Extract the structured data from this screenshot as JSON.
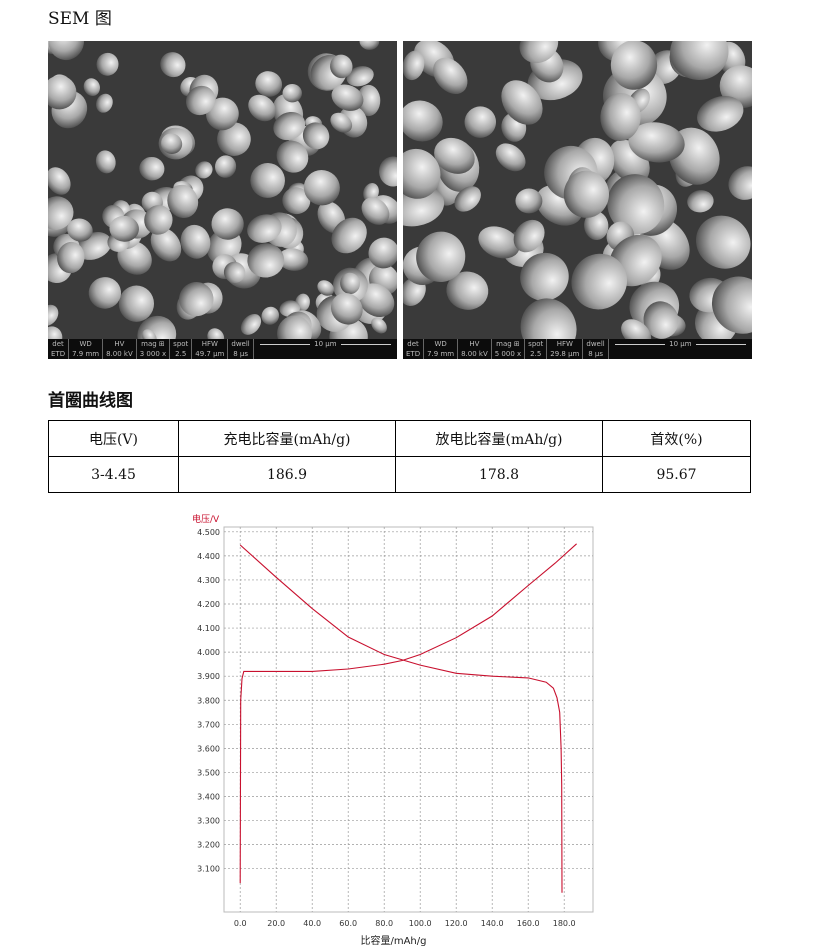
{
  "sem": {
    "title": "SEM 图",
    "images": [
      {
        "headers": [
          "det",
          "WD",
          "HV",
          "mag ⊞",
          "spot",
          "HFW",
          "dwell"
        ],
        "values": [
          "ETD",
          "7.9 mm",
          "8.00 kV",
          "3 000 x",
          "2.5",
          "49.7 μm",
          "8 μs"
        ],
        "scale": "10 μm"
      },
      {
        "headers": [
          "det",
          "WD",
          "HV",
          "mag ⊞",
          "spot",
          "HFW",
          "dwell"
        ],
        "values": [
          "ETD",
          "7.9 mm",
          "8.00 kV",
          "5 000 x",
          "2.5",
          "29.8 μm",
          "8 μs"
        ],
        "scale": "10 μm"
      }
    ]
  },
  "curve": {
    "title": "首圈曲线图"
  },
  "table": {
    "headers": [
      "电压(V)",
      "充电比容量(mAh/g)",
      "放电比容量(mAh/g)",
      "首效(%)"
    ],
    "rows": [
      [
        "3-4.45",
        "186.9",
        "178.8",
        "95.67"
      ]
    ]
  },
  "chart_data": {
    "type": "line",
    "ylabel": "电压/V",
    "xlabel": "比容量/mAh/g",
    "xlim": [
      -9,
      196
    ],
    "ylim": [
      2.92,
      4.52
    ],
    "xticks": [
      "0.0",
      "20.0",
      "40.0",
      "60.0",
      "80.0",
      "100.0",
      "120.0",
      "140.0",
      "160.0",
      "180.0"
    ],
    "yticks": [
      "4.500",
      "4.400",
      "4.300",
      "4.200",
      "4.100",
      "4.000",
      "3.900",
      "3.800",
      "3.700",
      "3.600",
      "3.500",
      "3.400",
      "3.300",
      "3.200",
      "3.100"
    ],
    "grid": true,
    "line_color": "#c8102e",
    "series": [
      {
        "x": [
          0,
          0.3,
          1,
          2,
          5,
          20,
          40,
          60,
          80,
          90,
          100,
          120,
          140,
          160,
          175,
          186.9
        ],
        "y": [
          3.04,
          3.8,
          3.89,
          3.92,
          3.92,
          3.92,
          3.92,
          3.93,
          3.95,
          3.965,
          3.99,
          4.06,
          4.15,
          4.277,
          4.37,
          4.45
        ]
      },
      {
        "x": [
          0,
          20,
          40,
          60,
          80,
          100,
          120,
          140,
          160,
          170,
          174,
          176,
          177.5,
          178.3,
          178.6,
          178.8
        ],
        "y": [
          4.445,
          4.311,
          4.181,
          4.063,
          3.99,
          3.946,
          3.912,
          3.9,
          3.893,
          3.875,
          3.85,
          3.81,
          3.75,
          3.6,
          3.45,
          3.0
        ]
      }
    ]
  }
}
